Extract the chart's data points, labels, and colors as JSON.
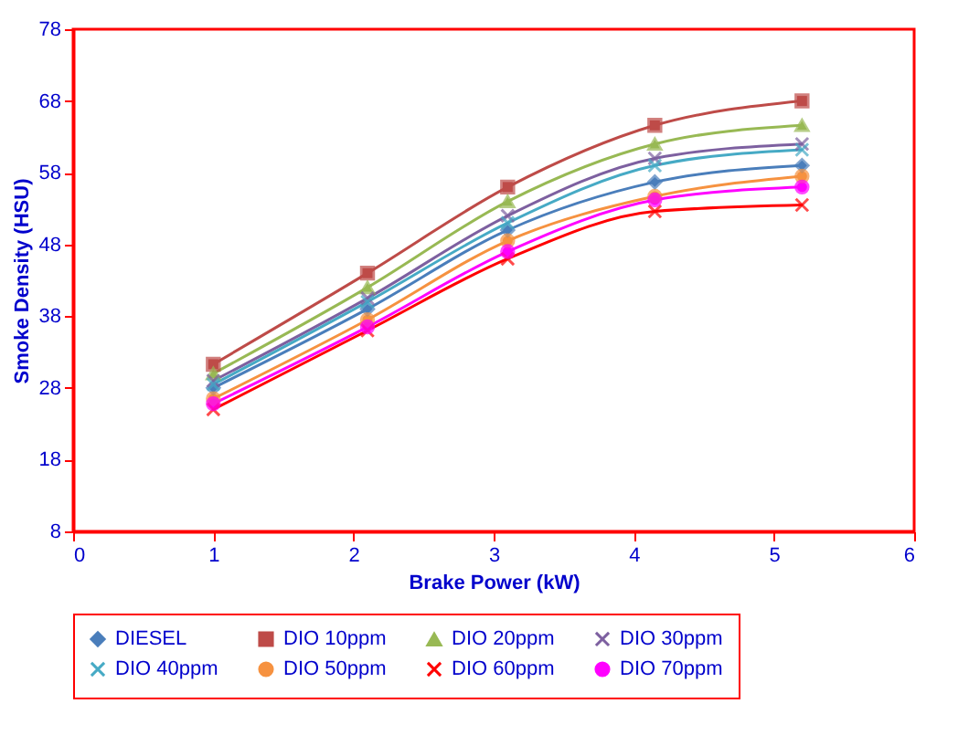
{
  "chart_data": {
    "type": "line",
    "xlabel": "Brake Power (kW)",
    "ylabel": "Smoke Density (HSU)",
    "x": [
      1,
      2.1,
      3.1,
      4.15,
      5.2
    ],
    "xlim": [
      0,
      6
    ],
    "xticks": [
      {
        "value": 0,
        "label": "0"
      },
      {
        "value": 1,
        "label": "1"
      },
      {
        "value": 2,
        "label": "2"
      },
      {
        "value": 3,
        "label": "3"
      },
      {
        "value": 4,
        "label": "4"
      },
      {
        "value": 5,
        "label": "5"
      },
      {
        "value": 6,
        "label": "6"
      }
    ],
    "ylim": [
      8,
      78
    ],
    "yticks": [
      8,
      18,
      28,
      38,
      48,
      58,
      68,
      78
    ],
    "grid": false,
    "legend": "bottom",
    "line_style": "solid",
    "series": [
      {
        "name": "DIESEL",
        "color": "#4a7ebb",
        "marker": "diamond",
        "values": [
          28,
          39,
          50,
          56.7,
          59
        ]
      },
      {
        "name": "DIO 10ppm",
        "color": "#be4b48",
        "marker": "square",
        "values": [
          31.3,
          44,
          56,
          64.6,
          68
        ]
      },
      {
        "name": "DIO 20ppm",
        "color": "#98b954",
        "marker": "triangle",
        "values": [
          30,
          42,
          54,
          62,
          64.6
        ]
      },
      {
        "name": "DIO 30ppm",
        "color": "#7d60a0",
        "marker": "cross",
        "values": [
          29,
          40.5,
          52,
          60,
          62
        ]
      },
      {
        "name": "DIO 40ppm",
        "color": "#46aac5",
        "marker": "cross",
        "values": [
          28.5,
          40,
          51,
          59,
          61.2
        ]
      },
      {
        "name": "DIO 50ppm",
        "color": "#f69240",
        "marker": "circle",
        "values": [
          26.5,
          37.5,
          48.5,
          54.7,
          57.5
        ]
      },
      {
        "name": "DIO 60ppm",
        "color": "#ff0000",
        "marker": "cross",
        "values": [
          25,
          36,
          46,
          52.6,
          53.5
        ]
      },
      {
        "name": "DIO 70ppm",
        "color": "#ff00ff",
        "marker": "circle",
        "values": [
          25.8,
          36.5,
          47,
          54.2,
          56
        ]
      }
    ]
  }
}
